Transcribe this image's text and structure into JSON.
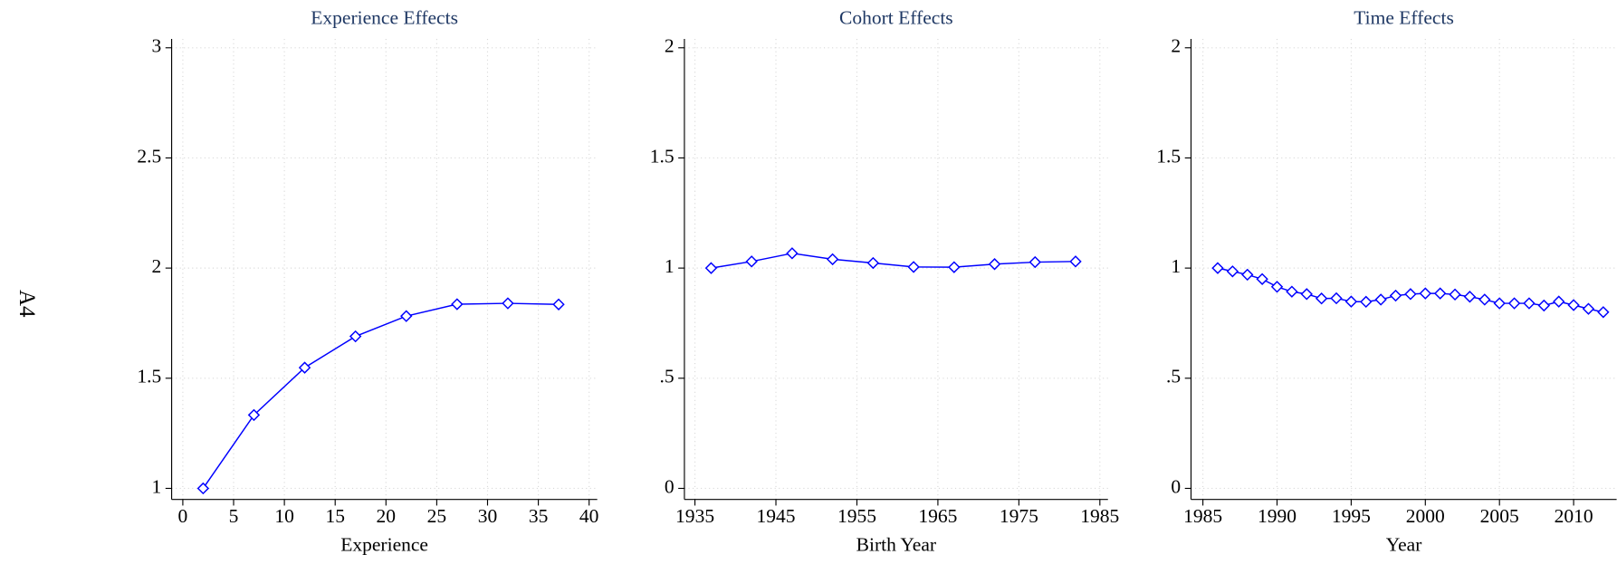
{
  "chart_data": [
    {
      "type": "line",
      "title": "Experience Effects",
      "xlabel": "Experience",
      "ylabel": "A4",
      "color": "#0000ff",
      "x": [
        2,
        7,
        12,
        17,
        22,
        27,
        32,
        37
      ],
      "values": [
        1,
        1.333,
        1.548,
        1.69,
        1.782,
        1.836,
        1.84,
        1.835
      ],
      "xlim": [
        -1.1,
        40.8
      ],
      "ylim": [
        0.95,
        3.04
      ],
      "xticks": [
        0,
        5,
        10,
        15,
        20,
        25,
        30,
        35,
        40
      ],
      "yticks": [
        1,
        1.5,
        2,
        2.5,
        3
      ],
      "grid": true
    },
    {
      "type": "line",
      "title": "Cohort Effects",
      "xlabel": "Birth Year",
      "color": "#0000ff",
      "x": [
        1937,
        1942,
        1947,
        1952,
        1957,
        1962,
        1967,
        1972,
        1977,
        1982
      ],
      "values": [
        1,
        1.03,
        1.067,
        1.04,
        1.023,
        1.005,
        1.004,
        1.018,
        1.027,
        1.03
      ],
      "xlim": [
        1933.7,
        1986
      ],
      "ylim": [
        -0.05,
        2.04
      ],
      "xticks": [
        1935,
        1945,
        1955,
        1965,
        1975,
        1985
      ],
      "yticks": [
        0,
        {
          "value": 0.5,
          "label": ".5"
        },
        1,
        1.5,
        2
      ],
      "grid": true
    },
    {
      "type": "line",
      "title": "Time Effects",
      "xlabel": "Year",
      "color": "#0000ff",
      "x": [
        1986,
        1987,
        1988,
        1989,
        1990,
        1991,
        1992,
        1993,
        1994,
        1995,
        1996,
        1997,
        1998,
        1999,
        2000,
        2001,
        2002,
        2003,
        2004,
        2005,
        2006,
        2007,
        2008,
        2009,
        2010,
        2011,
        2012
      ],
      "values": [
        1,
        0.985,
        0.97,
        0.95,
        0.915,
        0.893,
        0.882,
        0.862,
        0.863,
        0.848,
        0.847,
        0.857,
        0.875,
        0.882,
        0.885,
        0.885,
        0.88,
        0.87,
        0.857,
        0.84,
        0.84,
        0.84,
        0.83,
        0.848,
        0.832,
        0.815,
        0.8
      ],
      "xlim": [
        1984.2,
        2012.9
      ],
      "ylim": [
        -0.05,
        2.04
      ],
      "xticks": [
        1985,
        1990,
        1995,
        2000,
        2005,
        2010
      ],
      "yticks": [
        0,
        {
          "value": 0.5,
          "label": ".5"
        },
        1,
        1.5,
        2
      ],
      "grid": true
    }
  ]
}
